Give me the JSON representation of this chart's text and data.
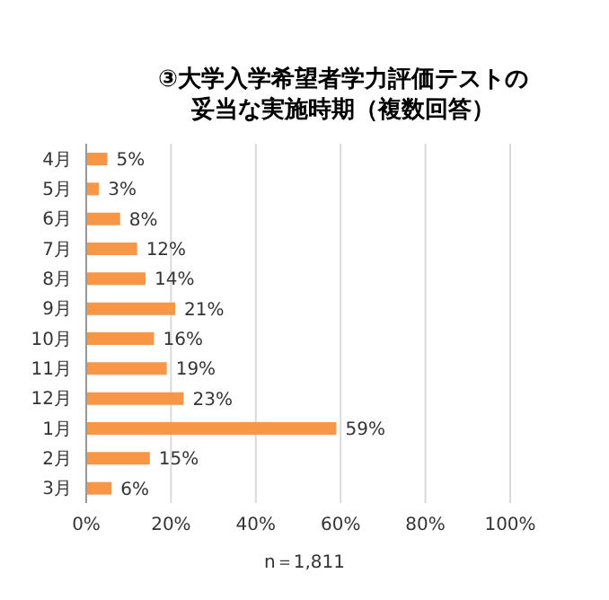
{
  "chart_data": {
    "type": "bar",
    "orientation": "horizontal",
    "title": "③大学入学希望者学力評価テストの妥当な実施時期（複数回答）",
    "categories": [
      "4月",
      "5月",
      "6月",
      "7月",
      "8月",
      "9月",
      "10月",
      "11月",
      "12月",
      "1月",
      "2月",
      "3月"
    ],
    "values": [
      5,
      3,
      8,
      12,
      14,
      21,
      16,
      19,
      23,
      59,
      15,
      6
    ],
    "value_labels": [
      "5%",
      "3%",
      "8%",
      "12%",
      "14%",
      "21%",
      "16%",
      "19%",
      "23%",
      "59%",
      "15%",
      "6%"
    ],
    "color": "#f79646",
    "xlim": [
      0,
      100
    ],
    "xticks": [
      {
        "value": 0,
        "label": "0%"
      },
      {
        "value": 20,
        "label": "20%"
      },
      {
        "value": 40,
        "label": "40%"
      },
      {
        "value": 60,
        "label": "60%"
      },
      {
        "value": 80,
        "label": "80%"
      },
      {
        "value": 100,
        "label": "100%"
      }
    ],
    "grid": "x",
    "annotations": [
      "n＝1,811"
    ]
  }
}
